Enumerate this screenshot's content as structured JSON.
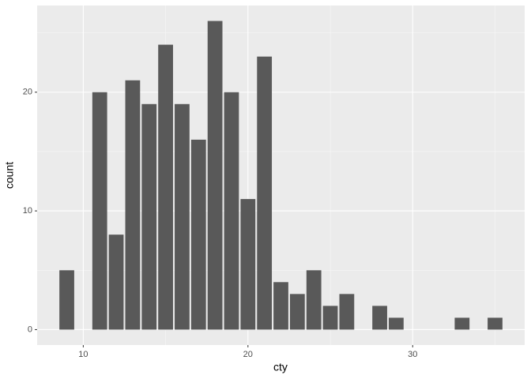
{
  "chart_data": {
    "type": "bar",
    "x_label": "cty",
    "y_label": "count",
    "x": [
      9,
      11,
      12,
      13,
      14,
      15,
      16,
      17,
      18,
      19,
      20,
      21,
      22,
      23,
      24,
      25,
      26,
      28,
      29,
      33,
      35
    ],
    "values": [
      5,
      20,
      8,
      21,
      19,
      24,
      19,
      16,
      26,
      20,
      11,
      23,
      4,
      3,
      5,
      2,
      3,
      2,
      1,
      1,
      1
    ],
    "color": "#595959",
    "xlim": [
      7.2,
      36.8
    ],
    "xticks": [
      10,
      20,
      30
    ],
    "ylim": [
      -1.3,
      27.3
    ],
    "yticks": [
      0,
      10,
      20
    ],
    "grid": true
  }
}
